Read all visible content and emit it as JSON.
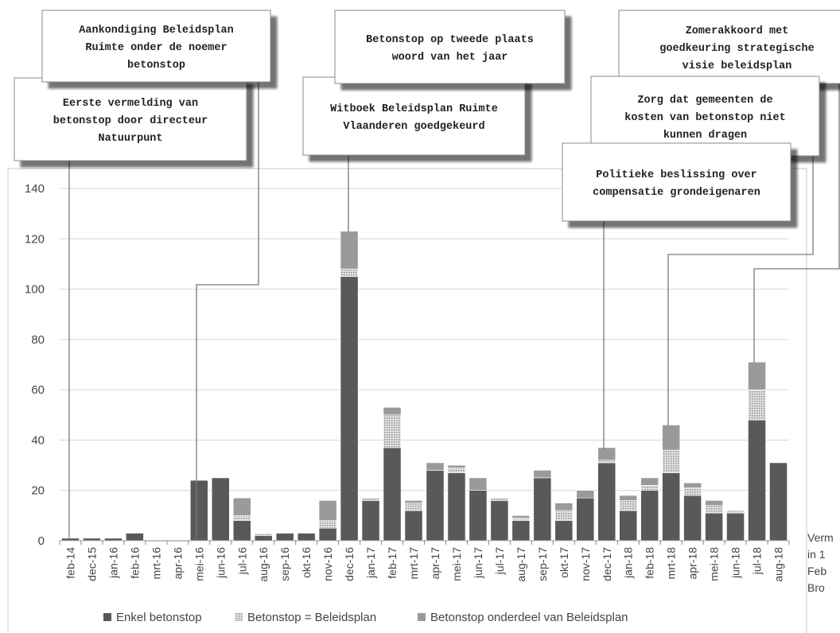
{
  "chart_data": {
    "type": "bar",
    "stacked": true,
    "title": "",
    "xlabel": "",
    "ylabel": "",
    "ylim": [
      0,
      140
    ],
    "yticks": [
      0,
      20,
      40,
      60,
      80,
      100,
      120,
      140
    ],
    "grid": true,
    "legend_position": "bottom",
    "categories": [
      "feb-14",
      "dec-15",
      "jan-16",
      "feb-16",
      "mrt-16",
      "apr-16",
      "mei-16",
      "jun-16",
      "jul-16",
      "aug-16",
      "sep-16",
      "okt-16",
      "nov-16",
      "dec-16",
      "jan-17",
      "feb-17",
      "mrt-17",
      "apr-17",
      "mei-17",
      "jun-17",
      "jul-17",
      "aug-17",
      "sep-17",
      "okt-17",
      "nov-17",
      "dec-17",
      "jan-18",
      "feb-18",
      "mrt-18",
      "apr-18",
      "mei-18",
      "jun-18",
      "jul-18",
      "aug-18"
    ],
    "series": [
      {
        "name": "Enkel betonstop",
        "color": "#595959",
        "pattern": "solid",
        "values": [
          1,
          1,
          1,
          3,
          0,
          0,
          24,
          25,
          8,
          2,
          3,
          3,
          5,
          105,
          16,
          37,
          12,
          28,
          27,
          20,
          16,
          8,
          25,
          8,
          17,
          31,
          12,
          20,
          27,
          18,
          11,
          11,
          48,
          31
        ]
      },
      {
        "name": "Betonstop = Beleidsplan",
        "color": "#c8c8c8",
        "pattern": "dotted",
        "values": [
          0,
          0,
          0,
          0,
          0,
          0,
          0,
          0,
          2,
          1,
          0,
          0,
          3,
          3,
          1,
          13,
          3,
          0,
          2,
          0,
          1,
          1,
          0,
          4,
          0,
          1,
          4,
          2,
          9,
          3,
          3,
          1,
          12,
          0
        ]
      },
      {
        "name": "Betonstop onderdeel van Beleidsplan",
        "color": "#9a9a9a",
        "pattern": "solid",
        "values": [
          0,
          0,
          0,
          0,
          0,
          0,
          0,
          0,
          7,
          0,
          0,
          0,
          8,
          15,
          0,
          3,
          1,
          3,
          1,
          5,
          0,
          1,
          3,
          3,
          3,
          5,
          2,
          3,
          10,
          2,
          2,
          0,
          11,
          0
        ]
      }
    ],
    "annotations": [
      {
        "lines": [
          "Eerste vermelding van",
          "betonstop door directeur",
          "Natuurpunt"
        ],
        "category": "feb-14"
      },
      {
        "lines": [
          "Aankondiging Beleidsplan",
          "Ruimte onder de noemer",
          "betonstop"
        ],
        "category": "mei-16"
      },
      {
        "lines": [
          "Witboek Beleidsplan Ruimte",
          "Vlaanderen goedgekeurd"
        ],
        "category": "dec-16"
      },
      {
        "lines": [
          "Betonstop op tweede plaats",
          "woord van het jaar"
        ],
        "category": "dec-16"
      },
      {
        "lines": [
          "Zomerakkoord met",
          "goedkeuring strategische",
          "visie beleidsplan"
        ],
        "category": "jul-18"
      },
      {
        "lines": [
          "Zorg dat gemeenten de",
          "kosten van betonstop niet",
          "kunnen dragen"
        ],
        "category": "mrt-18"
      },
      {
        "lines": [
          "Politieke beslissing over",
          "compensatie grondeigenaren"
        ],
        "category": "dec-17"
      }
    ]
  },
  "side_note": [
    "Verm",
    "in 1",
    "Feb",
    "Bro"
  ]
}
